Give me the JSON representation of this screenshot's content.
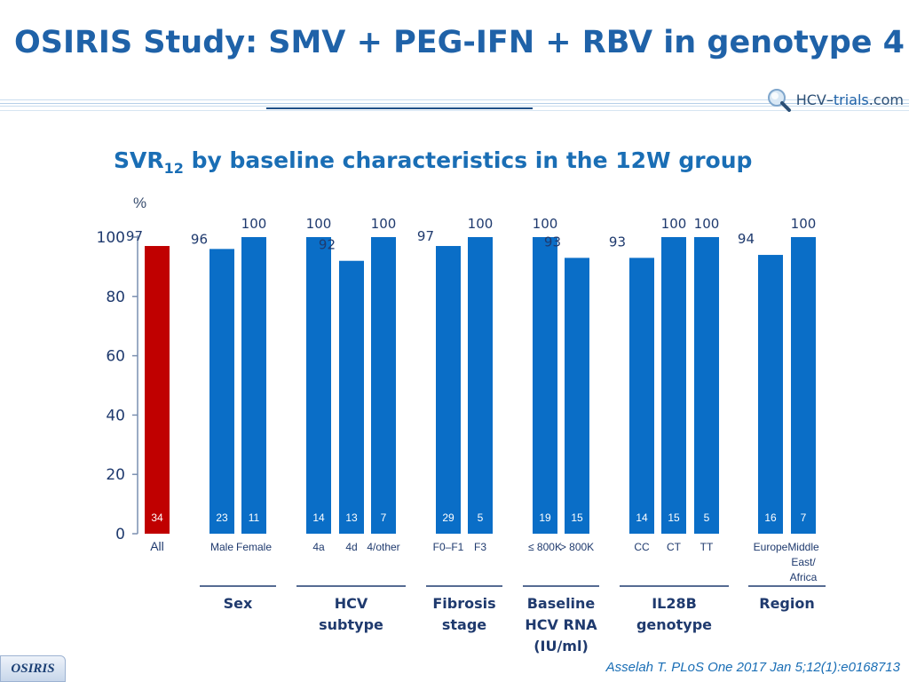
{
  "header": {
    "title": "OSIRIS Study: SMV + PEG-IFN + RBV in genotype 4",
    "logo_hcv": "HCV",
    "logo_dash": "–",
    "logo_trials": "trials",
    "logo_com": ".com"
  },
  "footer": {
    "badge": "OSIRIS",
    "citation": "Asselah T. PLoS One 2017 Jan 5;12(1):e0168713"
  },
  "colors": {
    "title": "#1f62a8",
    "bar_main": "#0a6ec7",
    "bar_all": "#c00000",
    "label_text": "#1f3a6e"
  },
  "chart_data": {
    "type": "bar",
    "title": "SVR",
    "title_sub": "12",
    "title_rest": " by baseline characteristics in the 12W group",
    "ylabel": "%",
    "ylim": [
      0,
      100
    ],
    "yticks": [
      "0",
      "20",
      "40",
      "60",
      "80",
      "100"
    ],
    "categories": [
      {
        "label": [
          "All"
        ],
        "value": 97,
        "n": 34,
        "highlight": true
      },
      {
        "label": [
          "Male"
        ],
        "value": 96,
        "n": 23
      },
      {
        "label": [
          "Female"
        ],
        "value": 100,
        "n": 11
      },
      {
        "label": [
          "4a"
        ],
        "value": 100,
        "n": 14
      },
      {
        "label": [
          "4d"
        ],
        "value": 92,
        "n": 13
      },
      {
        "label": [
          "4/other"
        ],
        "value": 100,
        "n": 7
      },
      {
        "label": [
          "F0–F1"
        ],
        "value": 97,
        "n": 29
      },
      {
        "label": [
          "F3"
        ],
        "value": 100,
        "n": 5
      },
      {
        "label": [
          "≤ 800K"
        ],
        "value": 100,
        "n": 19
      },
      {
        "label": [
          "> 800K"
        ],
        "value": 93,
        "n": 15
      },
      {
        "label": [
          "CC"
        ],
        "value": 93,
        "n": 14
      },
      {
        "label": [
          "CT"
        ],
        "value": 100,
        "n": 15
      },
      {
        "label": [
          "TT"
        ],
        "value": 100,
        "n": 5
      },
      {
        "label": [
          "Europe"
        ],
        "value": 94,
        "n": 16
      },
      {
        "label": [
          "Middle",
          "East/",
          "Africa"
        ],
        "value": 100,
        "n": 7
      }
    ],
    "groups": [
      {
        "name": [
          "Sex"
        ],
        "from": 1,
        "to": 2
      },
      {
        "name": [
          "HCV",
          "subtype"
        ],
        "from": 3,
        "to": 5
      },
      {
        "name": [
          "Fibrosis",
          "stage"
        ],
        "from": 6,
        "to": 7
      },
      {
        "name": [
          "Baseline",
          "HCV RNA",
          "(IU/ml)"
        ],
        "from": 8,
        "to": 9
      },
      {
        "name": [
          "IL28B",
          "genotype"
        ],
        "from": 10,
        "to": 12
      },
      {
        "name": [
          "Region"
        ],
        "from": 13,
        "to": 14
      }
    ]
  }
}
